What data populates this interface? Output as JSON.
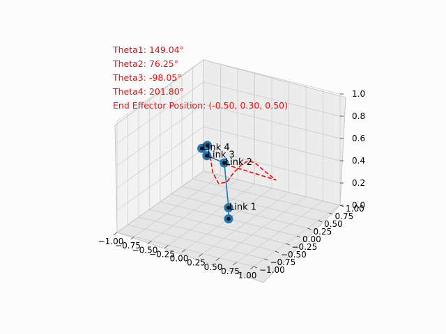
{
  "figure": {
    "background": "#fcfcfc",
    "info_color": "#ff0000",
    "info_lines": [
      "Theta1: 149.04°",
      "Theta2: 76.25°",
      "Theta3: -98.05°",
      "Theta4: 201.80°",
      "End Effector Position: (-0.50, 0.30, 0.50)"
    ]
  },
  "chart_data": {
    "type": "line",
    "projection": "3d",
    "grid": true,
    "xlim": [
      -1,
      1
    ],
    "ylim": [
      -1,
      1
    ],
    "zlim": [
      0,
      1
    ],
    "x_ticks": [
      "−1.00",
      "−0.75",
      "−0.50",
      "−0.25",
      "0.00",
      "0.25",
      "0.50",
      "0.75",
      "1.00"
    ],
    "y_ticks": [
      "−1.00",
      "−0.75",
      "−0.50",
      "−0.25",
      "0.00",
      "0.25",
      "0.50",
      "0.75",
      "1.00"
    ],
    "z_ticks": [
      "0.0",
      "0.2",
      "0.4",
      "0.6",
      "0.8",
      "1.0"
    ],
    "arm": {
      "color": "#1f77b4",
      "joints": [
        {
          "x": 0.0,
          "y": 0.0,
          "z": 0.0
        },
        {
          "x": 0.0,
          "y": 0.0,
          "z": 0.1
        },
        {
          "x": -0.05,
          "y": -0.02,
          "z": 0.5
        },
        {
          "x": -0.35,
          "y": 0.05,
          "z": 0.5
        },
        {
          "x": -0.55,
          "y": 0.25,
          "z": 0.48
        },
        {
          "x": -0.5,
          "y": 0.3,
          "z": 0.5
        }
      ],
      "link_labels": [
        {
          "text": "Link 1",
          "joint": 1
        },
        {
          "text": "Link 2",
          "joint": 2
        },
        {
          "text": "Link 3",
          "joint": 3
        },
        {
          "text": "Link 4",
          "joint": 4
        }
      ]
    },
    "trajectory": {
      "color": "#ff0000",
      "style": "dashed",
      "points": [
        {
          "x": -0.3,
          "y": 0.05,
          "z": 0.5
        },
        {
          "x": -0.2,
          "y": -0.05,
          "z": 0.4
        },
        {
          "x": -0.05,
          "y": -0.15,
          "z": 0.35
        },
        {
          "x": 0.1,
          "y": -0.2,
          "z": 0.4
        },
        {
          "x": 0.2,
          "y": -0.2,
          "z": 0.5
        },
        {
          "x": 0.3,
          "y": -0.18,
          "z": 0.58
        },
        {
          "x": 0.38,
          "y": -0.15,
          "z": 0.62
        },
        {
          "x": 0.45,
          "y": -0.1,
          "z": 0.6
        },
        {
          "x": 0.52,
          "y": 0.02,
          "z": 0.5
        },
        {
          "x": 0.6,
          "y": 0.15,
          "z": 0.4
        },
        {
          "x": 0.0,
          "y": 0.0,
          "z": 0.48
        }
      ]
    }
  }
}
